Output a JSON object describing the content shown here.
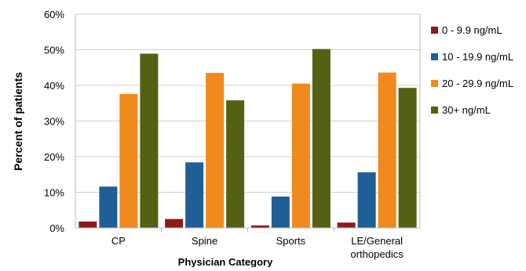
{
  "chart_data": {
    "type": "bar",
    "title": "",
    "xlabel": "Physician Category",
    "ylabel": "Percent of patients",
    "categories": [
      [
        "CP"
      ],
      [
        "Spine"
      ],
      [
        "Sports"
      ],
      [
        "LE/General",
        "orthopedics"
      ]
    ],
    "yticks": [
      "0%",
      "10%",
      "20%",
      "30%",
      "40%",
      "50%",
      "60%"
    ],
    "ylim": [
      0,
      60
    ],
    "grid": true,
    "legend_position": "right",
    "series": [
      {
        "name": "0 - 9.9 ng/mL",
        "color": "#8B1A1A",
        "values": [
          1.8,
          2.5,
          0.7,
          1.5
        ]
      },
      {
        "name": "10 - 19.9 ng/mL",
        "color": "#1F5F95",
        "values": [
          11.6,
          18.4,
          8.8,
          15.6
        ]
      },
      {
        "name": "20 - 29.9 ng/mL",
        "color": "#F0891E",
        "values": [
          37.6,
          43.5,
          40.5,
          43.6
        ]
      },
      {
        "name": "30+ ng/mL",
        "color": "#556014",
        "values": [
          48.9,
          35.8,
          50.2,
          39.3
        ]
      }
    ]
  }
}
